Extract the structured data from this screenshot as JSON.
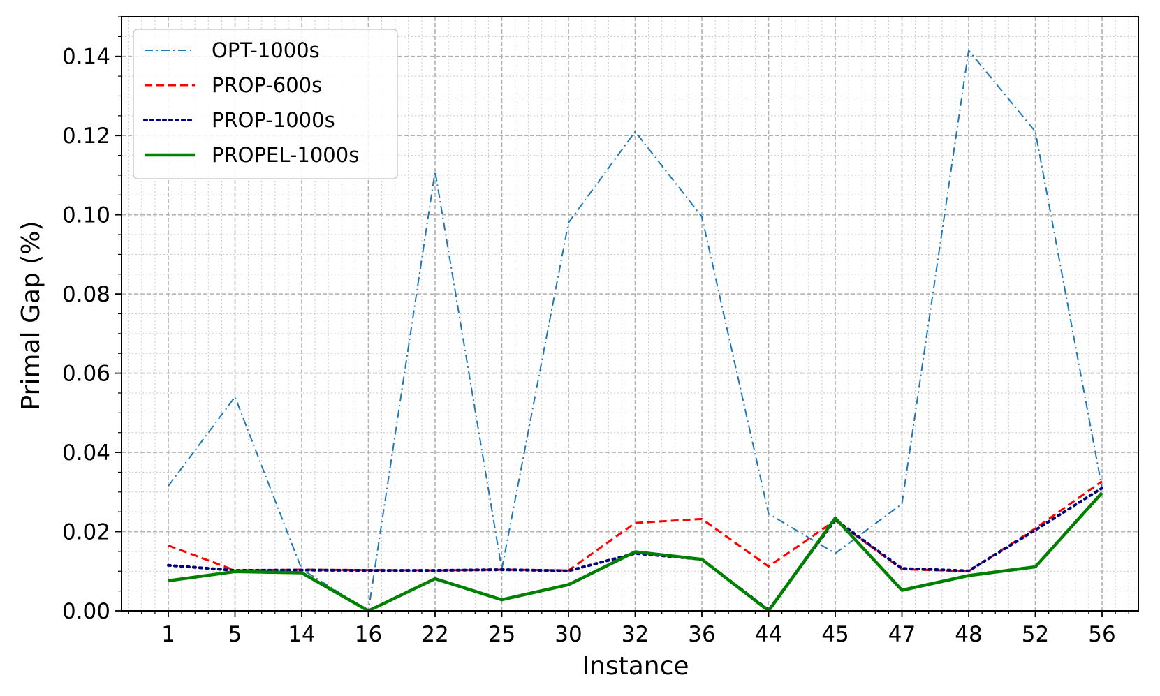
{
  "chart_data": {
    "type": "line",
    "title": "",
    "xlabel": "Instance",
    "ylabel": "Primal Gap (%)",
    "categories": [
      "1",
      "5",
      "14",
      "16",
      "22",
      "25",
      "30",
      "32",
      "36",
      "44",
      "45",
      "47",
      "48",
      "52",
      "56"
    ],
    "ylim": [
      0.0,
      0.15
    ],
    "yticks": [
      "0.00",
      "0.02",
      "0.04",
      "0.06",
      "0.08",
      "0.10",
      "0.12",
      "0.14"
    ],
    "grid": true,
    "legend_position": "top-left",
    "series": [
      {
        "name": "OPT-1000s",
        "color": "#1f77b4",
        "style": "dashdot",
        "values": [
          0.0315,
          0.054,
          0.0105,
          0.0,
          0.111,
          0.0105,
          0.098,
          0.121,
          0.0995,
          0.0245,
          0.0145,
          0.027,
          0.1415,
          0.121,
          0.031
        ]
      },
      {
        "name": "PROP-600s",
        "color": "#ff0000",
        "style": "dashed",
        "values": [
          0.0165,
          0.0102,
          0.0104,
          0.0103,
          0.0102,
          0.0104,
          0.0102,
          0.0222,
          0.0232,
          0.0112,
          0.0228,
          0.0105,
          0.01,
          0.0208,
          0.0327
        ]
      },
      {
        "name": "PROP-1000s",
        "color": "#00007f",
        "style": "dotted",
        "values": [
          0.0115,
          0.0102,
          0.0103,
          0.0102,
          0.0102,
          0.0104,
          0.0101,
          0.0145,
          0.013,
          0.0002,
          0.023,
          0.0107,
          0.0101,
          0.0204,
          0.031
        ]
      },
      {
        "name": "PROPEL-1000s",
        "color": "#008000",
        "style": "solid",
        "values": [
          0.0076,
          0.0099,
          0.0096,
          0.0,
          0.0081,
          0.0028,
          0.0066,
          0.0149,
          0.013,
          0.0,
          0.0234,
          0.0052,
          0.0089,
          0.0111,
          0.0298
        ]
      }
    ]
  }
}
